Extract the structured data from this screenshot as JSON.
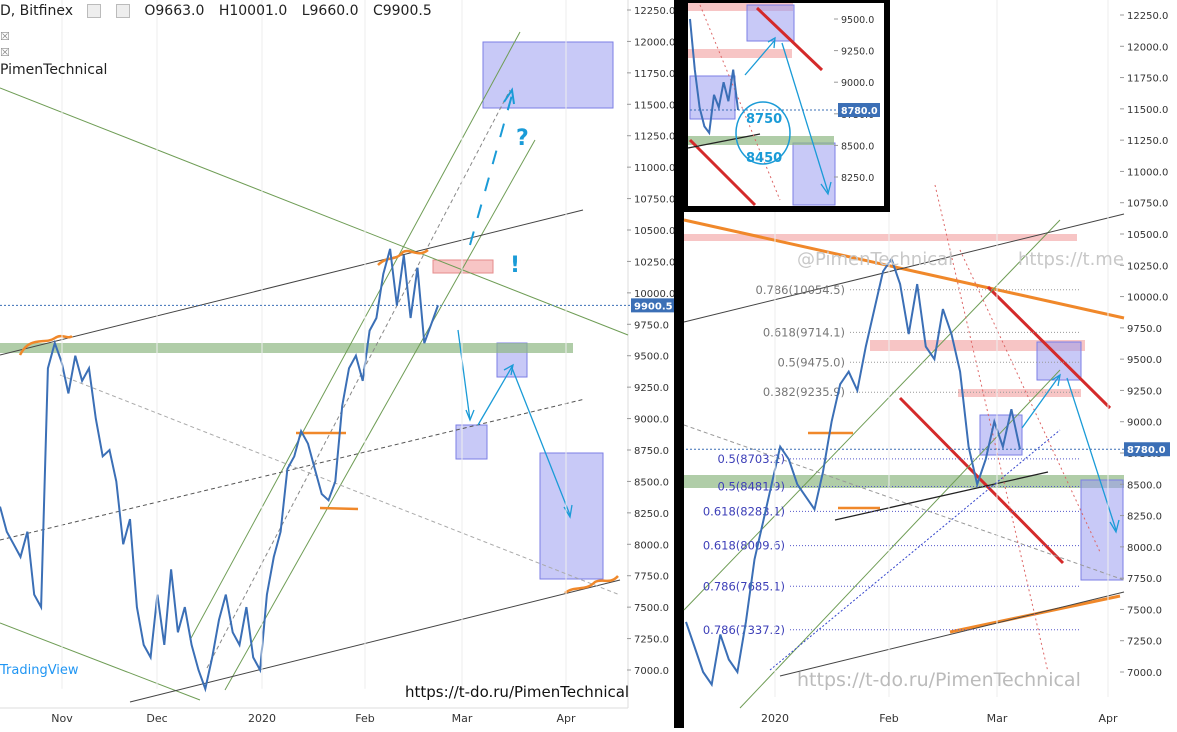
{
  "header": {
    "symbol_suffix": "D, Bitfinex",
    "open": "O9663.0",
    "high": "H10001.0",
    "low": "L9660.0",
    "close": "C9900.5"
  },
  "author_label": "PimenTechnical",
  "tradingview_label": "TradingView",
  "url_left": "https://t-do.ru/PimenTechnical",
  "url_right": "https://t-do.ru/PimenTechnical",
  "watermark_left": "@PimenTechnical",
  "watermark_right": "https://t.me",
  "colors": {
    "price_line": "#3b6fb6",
    "orange": "#f0882a",
    "red": "#d42a2a",
    "channel_green": "#6f9d56",
    "zone_blue": "#9a9cf0",
    "zone_green": "#8fb883",
    "zone_red": "#f5b6b6",
    "arrow": "#1a9bd7",
    "axis_badge": "#3b6fb6"
  },
  "chart_data": [
    {
      "type": "line",
      "panel": "main",
      "y_ticks": [
        7000,
        7250,
        7500,
        7750,
        8000,
        8250,
        8500,
        8750,
        9000,
        9250,
        9500,
        9750,
        10000,
        10250,
        10500,
        10750,
        11000,
        11250,
        11500,
        11750,
        12000,
        12250
      ],
      "y_tick_labels": [
        "7000.0",
        "7250.0",
        "7500.0",
        "7750.0",
        "8000.0",
        "8250.0",
        "8500.0",
        "8750.0",
        "9000.0",
        "9250.0",
        "9500.0",
        "9750.0",
        "10000.0",
        "10250.0",
        "10500.0",
        "10750.0",
        "11000.0",
        "11250.0",
        "11500.0",
        "11750.0",
        "12000.0",
        "12250.0"
      ],
      "ylim": [
        6850,
        12300
      ],
      "x_labels": [
        "Nov",
        "Dec",
        "2020",
        "Feb",
        "Mar",
        "Apr"
      ],
      "current_price": 9900.5,
      "current_price_label": "9900.5",
      "annotations": [
        "?",
        "!"
      ],
      "series": [
        {
          "values": [
            8300,
            8100,
            8000,
            7900,
            8100,
            7600,
            7500,
            9400,
            9600,
            9450,
            9200,
            9500,
            9300,
            9400,
            9000,
            8700,
            8750,
            8500,
            8000,
            8200,
            7500,
            7200,
            7100,
            7600,
            7200,
            7800,
            7300,
            7500,
            7200,
            7000,
            6850,
            7100,
            7400,
            7600,
            7300,
            7200,
            7500,
            7100,
            7000,
            7600,
            7900,
            8100,
            8600,
            8700,
            8900,
            8800,
            8600,
            8400,
            8350,
            8500,
            9100,
            9400,
            9500,
            9300,
            9700,
            9800,
            10150,
            10350,
            9900,
            10300,
            9800,
            10200,
            9600,
            9750,
            9900
          ]
        }
      ]
    },
    {
      "type": "line",
      "panel": "right",
      "y_ticks": [
        7000,
        7250,
        7500,
        7750,
        8000,
        8250,
        8500,
        8750,
        9000,
        9250,
        9500,
        9750,
        10000,
        10250,
        10500,
        10750,
        11000,
        11250,
        11500,
        11750,
        12000,
        12250
      ],
      "y_tick_labels": [
        "7000.0",
        "7250.0",
        "7500.0",
        "7750.0",
        "8000.0",
        "8250.0",
        "8500.0",
        "8750.0",
        "9000.0",
        "9250.0",
        "9500.0",
        "9750.0",
        "10000.0",
        "10250.0",
        "10500.0",
        "10750.0",
        "11000.0",
        "11250.0",
        "11500.0",
        "11750.0",
        "12000.0",
        "12250.0"
      ],
      "ylim": [
        6800,
        12300
      ],
      "x_labels": [
        "2020",
        "Feb",
        "Mar",
        "Apr"
      ],
      "current_price": 8780.0,
      "current_price_label": "8780.0",
      "fib_levels": [
        {
          "label": "0.786(10054.5)",
          "value": 10054.5
        },
        {
          "label": "0.618(9714.1)",
          "value": 9714.1
        },
        {
          "label": "0.5(9475.0)",
          "value": 9475.0
        },
        {
          "label": "0.382(9235.9)",
          "value": 9235.9
        },
        {
          "label": "0.5(8703.2)",
          "value": 8703.2
        },
        {
          "label": "0.5(8481.9)",
          "value": 8481.9
        },
        {
          "label": "0.618(8283.1)",
          "value": 8283.1
        },
        {
          "label": "0.618(8009.6)",
          "value": 8009.6
        },
        {
          "label": "0.786(7685.1)",
          "value": 7685.1
        },
        {
          "label": "0.786(7337.2)",
          "value": 7337.2
        }
      ],
      "series": [
        {
          "values": [
            7400,
            7200,
            7000,
            6900,
            7300,
            7100,
            7000,
            7400,
            7900,
            8200,
            8500,
            8800,
            8700,
            8500,
            8400,
            8300,
            8600,
            9000,
            9300,
            9400,
            9250,
            9600,
            9900,
            10200,
            10300,
            10100,
            9700,
            10100,
            9600,
            9500,
            9900,
            9700,
            9400,
            8800,
            8500,
            8700,
            9000,
            8800,
            9100,
            8780
          ]
        }
      ]
    },
    {
      "type": "line",
      "panel": "inset",
      "y_ticks": [
        8250,
        8500,
        8750,
        9000,
        9250,
        9500
      ],
      "y_tick_labels": [
        "8250.0",
        "8500.0",
        "8750.0",
        "9000.0",
        "9250.0",
        "9500.0"
      ],
      "ylim": [
        8050,
        9650
      ],
      "current_price": 8780.0,
      "current_price_label": "8780.0",
      "annotations": [
        "8750",
        "8450"
      ],
      "series": [
        {
          "values": [
            9500,
            9100,
            8800,
            8650,
            8600,
            8900,
            8800,
            9000,
            8850,
            9100,
            8780
          ]
        }
      ]
    }
  ]
}
